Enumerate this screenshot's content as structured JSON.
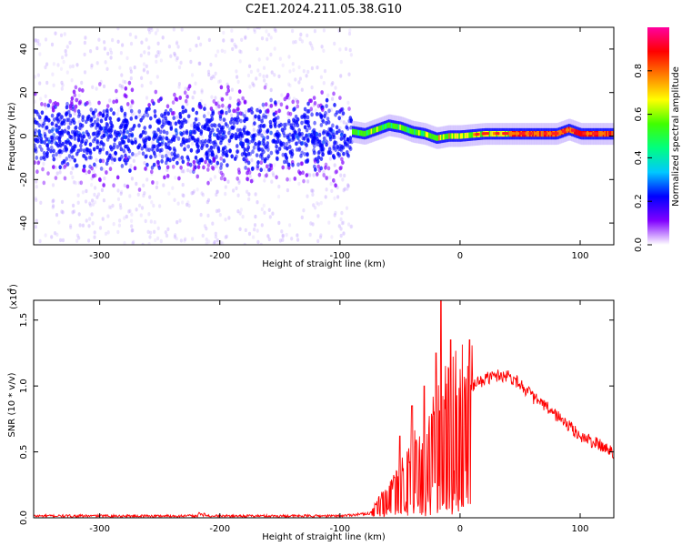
{
  "figure": {
    "title": "C2E1.2024.211.05.38.G10"
  },
  "chart_data": [
    {
      "type": "heatmap",
      "name": "spectrogram",
      "xlabel": "Height of straight line (km)",
      "ylabel": "Frequency (Hz)",
      "xlim": [
        -355,
        128
      ],
      "ylim": [
        -50,
        50
      ],
      "xticks": [
        -300,
        -200,
        -100,
        0,
        100
      ],
      "yticks": [
        -40,
        -20,
        0,
        20,
        40
      ],
      "colorbar": {
        "label": "Normalized spectral amplitude",
        "range": [
          0.0,
          1.0
        ],
        "ticks": [
          "0.0",
          "0.2",
          "0.4",
          "0.6",
          "0.8"
        ],
        "colormap": [
          "#ffffff",
          "#8000ff",
          "#0000ff",
          "#00c8ff",
          "#00ff80",
          "#40ff00",
          "#ffff00",
          "#ff8000",
          "#ff0000",
          "#ff00a0"
        ]
      },
      "ridge": {
        "x": [
          -90,
          -80,
          -70,
          -60,
          -50,
          -40,
          -30,
          -20,
          -10,
          0,
          20,
          40,
          60,
          80,
          90,
          100,
          128
        ],
        "freq": [
          2,
          1,
          3,
          5,
          4,
          2,
          1,
          -1,
          0,
          0,
          1,
          1,
          1,
          1,
          3,
          1,
          1
        ]
      },
      "noise_region": {
        "x": [
          -355,
          -90
        ],
        "center_freq": 0,
        "spread_hz": 15
      }
    },
    {
      "type": "line",
      "name": "snr",
      "xlabel": "Height of straight line (km)",
      "ylabel": "SNR (10 * v/v)",
      "y_multiplier": "(x10",
      "y_multiplier_exp": "4",
      "y_multiplier_close": ")",
      "xlim": [
        -355,
        128
      ],
      "ylim": [
        0,
        1.65
      ],
      "xticks": [
        -300,
        -200,
        -100,
        0,
        100
      ],
      "yticks": [
        "0.0",
        "0.5",
        "1.0",
        "1.5"
      ],
      "ytick_values": [
        0.0,
        0.5,
        1.0,
        1.5
      ],
      "color": "#ff0000",
      "envelope": {
        "x": [
          -355,
          -100,
          -75,
          -65,
          -50,
          -40,
          -30,
          -20,
          -15,
          -10,
          0,
          10,
          20,
          30,
          40,
          50,
          60,
          80,
          100,
          128
        ],
        "y": [
          0.01,
          0.01,
          0.03,
          0.15,
          0.3,
          0.45,
          0.6,
          0.7,
          0.8,
          0.85,
          0.95,
          1.0,
          1.05,
          1.08,
          1.08,
          1.02,
          0.92,
          0.78,
          0.62,
          0.5
        ]
      },
      "spikes": [
        {
          "x": -50,
          "y": 0.62
        },
        {
          "x": -40,
          "y": 0.85
        },
        {
          "x": -30,
          "y": 1.0
        },
        {
          "x": -20,
          "y": 1.25
        },
        {
          "x": -16,
          "y": 1.65
        },
        {
          "x": -8,
          "y": 1.35
        },
        {
          "x": 8,
          "y": 1.35
        }
      ]
    }
  ]
}
